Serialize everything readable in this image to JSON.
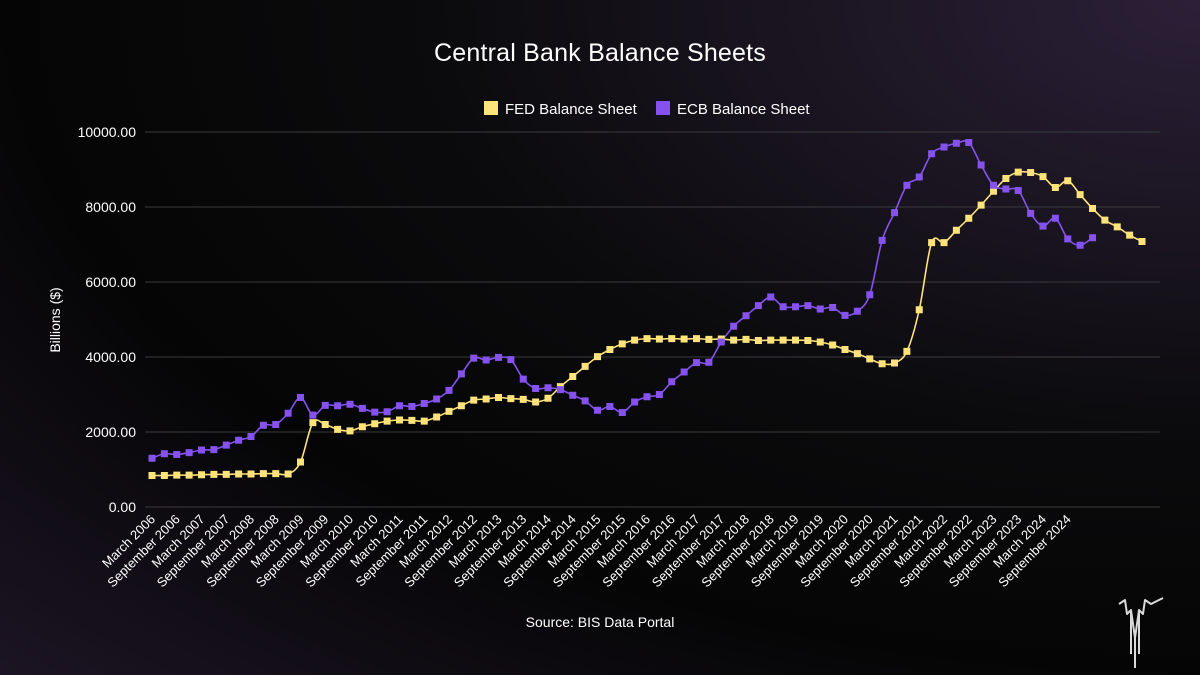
{
  "chart_data": {
    "type": "line",
    "title": "Central Bank Balance Sheets",
    "ylabel": "Billions ($)",
    "xlabel": "",
    "source": "Source: BIS Data Portal",
    "ylim": [
      0,
      10000
    ],
    "yticks": [
      "0.00",
      "2000.00",
      "4000.00",
      "6000.00",
      "8000.00",
      "10000.00"
    ],
    "ytick_values": [
      0,
      2000,
      4000,
      6000,
      8000,
      10000
    ],
    "grid": true,
    "legend_position": "top-center",
    "x_tick_labels": [
      "March 2006",
      "September 2006",
      "March 2007",
      "September 2007",
      "March 2008",
      "September 2008",
      "March 2009",
      "September 2009",
      "March 2010",
      "September 2010",
      "March 2011",
      "September 2011",
      "March 2012",
      "September 2012",
      "March 2013",
      "September 2013",
      "March 2014",
      "September 2014",
      "March 2015",
      "September 2015",
      "March 2016",
      "September 2016",
      "March 2017",
      "September 2017",
      "March 2018",
      "September 2018",
      "March 2019",
      "September 2019",
      "March 2020",
      "September 2020",
      "March 2021",
      "September 2021",
      "March 2022",
      "September 2022",
      "March 2023",
      "September 2023",
      "March 2024",
      "September 2024"
    ],
    "x_tick_index_step": 2,
    "series": [
      {
        "name": "FED Balance Sheet",
        "color": "#fde37a",
        "values": [
          840,
          840,
          850,
          850,
          860,
          870,
          870,
          880,
          880,
          890,
          890,
          880,
          1200,
          2250,
          2200,
          2070,
          2030,
          2140,
          2220,
          2290,
          2320,
          2310,
          2290,
          2400,
          2550,
          2700,
          2850,
          2880,
          2920,
          2890,
          2870,
          2800,
          2900,
          3210,
          3480,
          3750,
          4010,
          4200,
          4350,
          4450,
          4490,
          4480,
          4490,
          4480,
          4490,
          4470,
          4480,
          4450,
          4470,
          4440,
          4450,
          4450,
          4450,
          4440,
          4400,
          4320,
          4200,
          4090,
          3950,
          3820,
          3840,
          4150,
          5260,
          7050,
          7050,
          7380,
          7700,
          8050,
          8420,
          8760,
          8930,
          8920,
          8810,
          8520,
          8700,
          8330,
          7960,
          7650,
          7470,
          7250,
          7080
        ]
      },
      {
        "name": "ECB Balance Sheet",
        "color": "#8552f0",
        "values": [
          1300,
          1420,
          1400,
          1450,
          1520,
          1530,
          1650,
          1780,
          1880,
          2180,
          2200,
          2500,
          2920,
          2450,
          2710,
          2700,
          2740,
          2630,
          2530,
          2540,
          2700,
          2680,
          2760,
          2880,
          3110,
          3550,
          3970,
          3920,
          3990,
          3930,
          3410,
          3160,
          3180,
          3130,
          2980,
          2830,
          2580,
          2680,
          2520,
          2800,
          2940,
          3000,
          3340,
          3600,
          3850,
          3860,
          4400,
          4820,
          5100,
          5370,
          5600,
          5340,
          5340,
          5370,
          5280,
          5320,
          5110,
          5220,
          5660,
          7110,
          7850,
          8580,
          8800,
          9420,
          9600,
          9700,
          9720,
          9120,
          8580,
          8480,
          8440,
          7830,
          7490,
          7700,
          7150,
          6980,
          7180
        ]
      }
    ]
  }
}
